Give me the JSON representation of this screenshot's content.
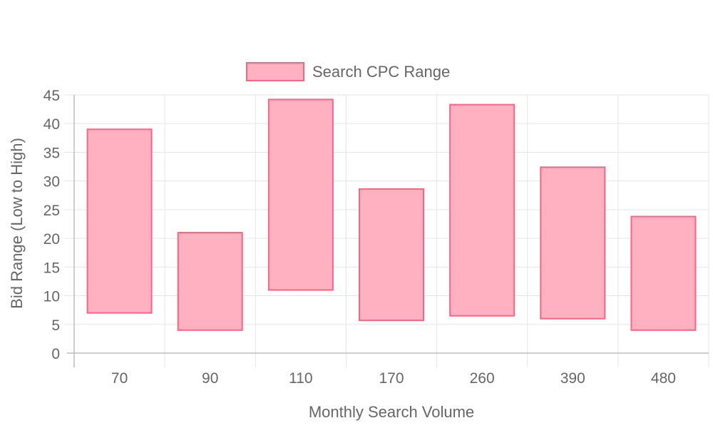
{
  "chart_data": {
    "type": "bar",
    "subtype": "floating-range",
    "categories": [
      "70",
      "90",
      "110",
      "170",
      "260",
      "390",
      "480"
    ],
    "series": [
      {
        "name": "Search CPC Range",
        "ranges": [
          [
            7,
            39
          ],
          [
            4,
            21
          ],
          [
            11,
            44.2
          ],
          [
            5.7,
            28.6
          ],
          [
            6.5,
            43.3
          ],
          [
            6,
            32.4
          ],
          [
            4,
            23.8
          ]
        ],
        "fill_color": "#ffb1c1",
        "stroke_color": "#ff6384"
      }
    ],
    "xlabel": "Monthly Search Volume",
    "ylabel": "Bid Range (Low to High)",
    "ylim": [
      0,
      45
    ],
    "y_ticks": [
      "0",
      "5",
      "10",
      "15",
      "20",
      "25",
      "30",
      "35",
      "40",
      "45"
    ],
    "grid": true,
    "legend_position": "top"
  }
}
